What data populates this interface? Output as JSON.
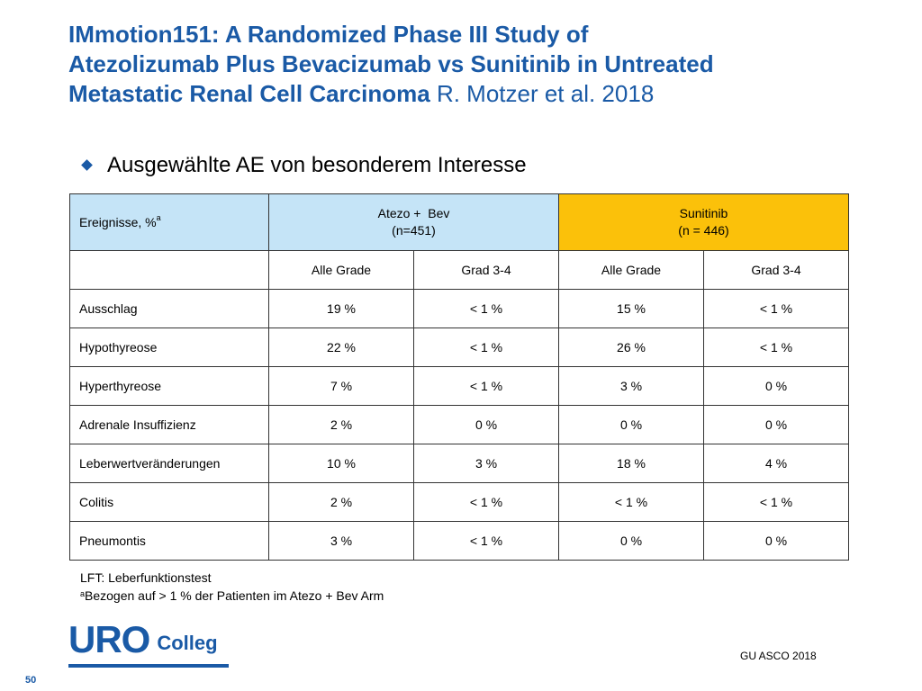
{
  "title": {
    "line1": "IMmotion151: A Randomized Phase III Study of",
    "line2": "Atezolizumab Plus Bevacizumab vs Sunitinib in Untreated",
    "line3": "Metastatic Renal Cell Carcinoma",
    "author": "R. Motzer et al. 2018"
  },
  "bullet": "Ausgewählte AE von besonderem Interesse",
  "table": {
    "header_label": "Ereignisse, %",
    "header_sup": "a",
    "atezo_line1": "Atezo +  Bev",
    "atezo_line2": "(n=451)",
    "suni_line1": "Sunitinib",
    "suni_line2": "(n = 446)",
    "subheaders": [
      "Alle Grade",
      "Grad 3-4",
      "Alle Grade",
      "Grad 3-4"
    ],
    "rows": [
      {
        "label": "Ausschlag",
        "values": [
          "19 %",
          "< 1 %",
          "15 %",
          "< 1 %"
        ]
      },
      {
        "label": "Hypothyreose",
        "values": [
          "22 %",
          "< 1 %",
          "26 %",
          "< 1 %"
        ]
      },
      {
        "label": "Hyperthyreose",
        "values": [
          "7 %",
          "< 1 %",
          "3 %",
          "0 %"
        ]
      },
      {
        "label": "Adrenale Insuffizienz",
        "values": [
          "2 %",
          "0 %",
          "0 %",
          "0 %"
        ]
      },
      {
        "label": "Leberwertveränderungen",
        "values": [
          "10 %",
          "3 %",
          "18 %",
          "4 %"
        ]
      },
      {
        "label": "Colitis",
        "values": [
          "2 %",
          "< 1 %",
          "< 1 %",
          "< 1 %"
        ]
      },
      {
        "label": "Pneumontis",
        "values": [
          "3 %",
          "< 1 %",
          "0 %",
          "0 %"
        ]
      }
    ]
  },
  "footnotes": {
    "line1": "LFT: Leberfunktionstest",
    "sup": "a",
    "line2": "Bezogen auf > 1 % der Patienten im Atezo + Bev Arm"
  },
  "logo": {
    "uro": "URO",
    "colleg": "Colleg"
  },
  "source": "GU ASCO 2018",
  "page_number": "50",
  "colors": {
    "title": "#1a5aa6",
    "atezo_header": "#c5e4f7",
    "sunitinib_header": "#fbc10a"
  },
  "icons": {
    "bullet": "diamond-bullet-icon"
  }
}
